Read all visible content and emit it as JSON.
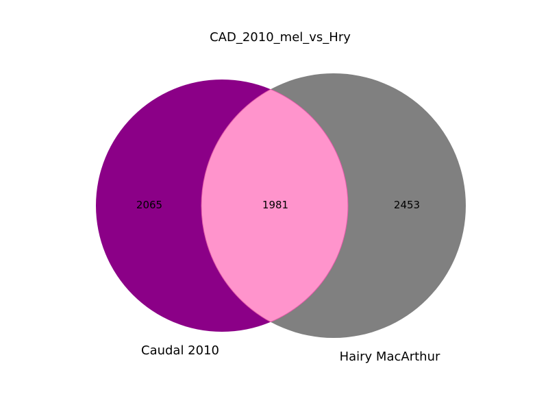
{
  "chart_data": {
    "type": "venn",
    "title": "CAD_2010_mel_vs_Hry",
    "sets": [
      {
        "name": "Caudal 2010",
        "only_count": "2065",
        "color": "#8b0087"
      },
      {
        "name": "Hairy MacArthur",
        "only_count": "2453",
        "color": "#808080"
      }
    ],
    "intersection": {
      "count": "1981",
      "color": "#ff94cc"
    }
  }
}
